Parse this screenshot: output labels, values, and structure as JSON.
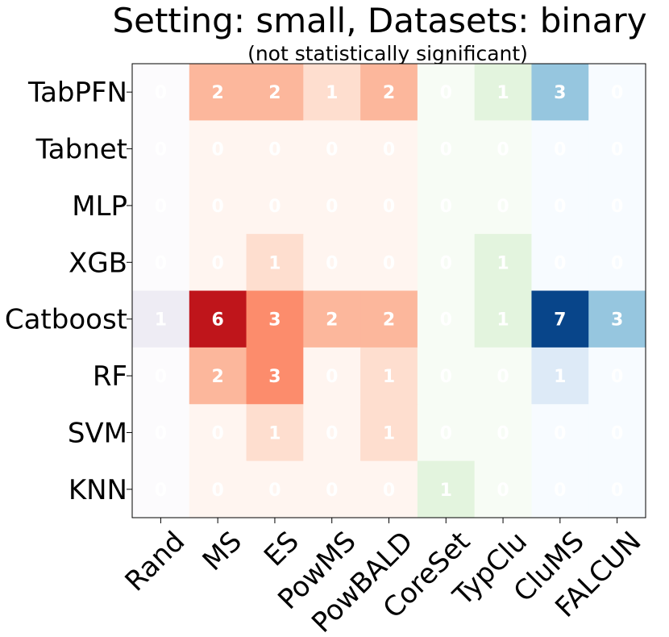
{
  "chart_data": {
    "type": "heatmap",
    "title": "Setting: small, Datasets: binary",
    "subtitle": "(not statistically significant)",
    "rows": [
      "TabPFN",
      "Tabnet",
      "MLP",
      "XGB",
      "Catboost",
      "RF",
      "SVM",
      "KNN"
    ],
    "columns": [
      "Rand",
      "MS",
      "ES",
      "PowMS",
      "PowBALD",
      "CoreSet",
      "TypClu",
      "CluMS",
      "FALCUN"
    ],
    "column_colormap": [
      "Purples",
      "Reds",
      "Reds",
      "Reds",
      "Reds",
      "Greens",
      "Greens",
      "Blues",
      "Blues"
    ],
    "values": [
      [
        0,
        2,
        2,
        1,
        2,
        0,
        1,
        3,
        0
      ],
      [
        0,
        0,
        0,
        0,
        0,
        0,
        0,
        0,
        0
      ],
      [
        0,
        0,
        0,
        0,
        0,
        0,
        0,
        0,
        0
      ],
      [
        0,
        0,
        1,
        0,
        0,
        0,
        1,
        0,
        0
      ],
      [
        1,
        6,
        3,
        2,
        2,
        0,
        1,
        7,
        3
      ],
      [
        0,
        2,
        3,
        0,
        1,
        0,
        0,
        1,
        0
      ],
      [
        0,
        0,
        1,
        0,
        1,
        0,
        0,
        0,
        0
      ],
      [
        0,
        0,
        0,
        0,
        0,
        1,
        0,
        0,
        0
      ]
    ],
    "colormaps": {
      "Reds": [
        "#fff5f0",
        "#fee0d2",
        "#fcbba1",
        "#fc9272",
        "#fb6a4a",
        "#ef3b2c",
        "#cb181d",
        "#a50f15",
        "#67000d"
      ],
      "Blues": [
        "#f7fbff",
        "#deebf7",
        "#c6dbef",
        "#9ecae1",
        "#6baed6",
        "#4292c6",
        "#2171b5",
        "#08519c",
        "#08306b"
      ],
      "Greens": [
        "#f7fcf5",
        "#e5f5e0",
        "#c7e9c0",
        "#a1d99b",
        "#74c476",
        "#41ab5d",
        "#238b45",
        "#006d2c",
        "#00441b"
      ],
      "Purples": [
        "#fcfbfd",
        "#efedf5",
        "#dadaeb",
        "#bcbddc",
        "#9e9ac8",
        "#807dba",
        "#6a51a3",
        "#54278f",
        "#3f007d"
      ]
    },
    "vmin": 0,
    "vmax": 7
  }
}
